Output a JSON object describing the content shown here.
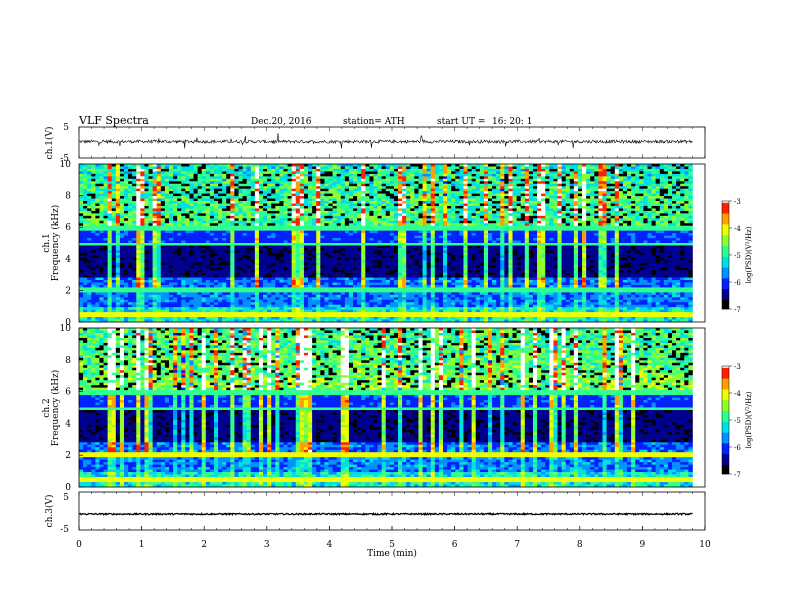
{
  "header": {
    "title": "VLF  Spectra",
    "date": "Dec.20, 2016",
    "station": "station= ATH",
    "start_label": "start  UT  =",
    "start_time": "16: 20: 1"
  },
  "chart_data": [
    {
      "type": "line",
      "ylabel": "ch.1(V)",
      "ylim": [
        -5,
        5
      ],
      "yticks": [
        "5",
        "-5"
      ],
      "xlim": [
        0,
        10
      ],
      "series": [
        {
          "color": "#000000",
          "baseline": 0.3,
          "spread": 0.5
        }
      ]
    },
    {
      "type": "heatmap",
      "ylabel": "ch.1\nFrequency  (kHz)",
      "ylabel_lines": [
        "ch.1",
        "Frequency  (kHz)"
      ],
      "ylim": [
        0,
        10
      ],
      "yticks": [
        "0",
        "2",
        "4",
        "6",
        "8",
        "10"
      ],
      "xlim": [
        0,
        9.8
      ],
      "colorbar": {
        "label": "log(PSD)(V²/Hz)",
        "ticks": [
          "-3",
          "-4",
          "-5",
          "-6",
          "-7"
        ],
        "range": [
          -7,
          -3
        ]
      }
    },
    {
      "type": "heatmap",
      "ylabel_lines": [
        "ch.2",
        "Frequency  (kHz)"
      ],
      "ylim": [
        0,
        10
      ],
      "yticks": [
        "0",
        "2",
        "4",
        "6",
        "8",
        "10"
      ],
      "xlim": [
        0,
        9.8
      ],
      "colorbar": {
        "label": "log(PSD)(V²/Hz)",
        "ticks": [
          "-3",
          "-4",
          "-5",
          "-6",
          "-7"
        ],
        "range": [
          -7,
          -3
        ]
      }
    },
    {
      "type": "line",
      "ylabel": "ch.3(V)",
      "ylim": [
        -5,
        5
      ],
      "yticks": [
        "5",
        "-5"
      ],
      "xlim": [
        0,
        10
      ],
      "series": [
        {
          "color": "#000000",
          "baseline": -0.8,
          "spread": 0.2
        }
      ]
    }
  ],
  "xaxis": {
    "label": "Time  (min)",
    "ticks": [
      "0",
      "1",
      "2",
      "3",
      "4",
      "5",
      "6",
      "7",
      "8",
      "9",
      "10"
    ]
  },
  "colorscale": [
    "#000000",
    "#00008f",
    "#0020ff",
    "#0090ff",
    "#00e0e0",
    "#30ff90",
    "#90ff30",
    "#f0ff00",
    "#ffa000",
    "#ff2000",
    "#ffffff"
  ]
}
